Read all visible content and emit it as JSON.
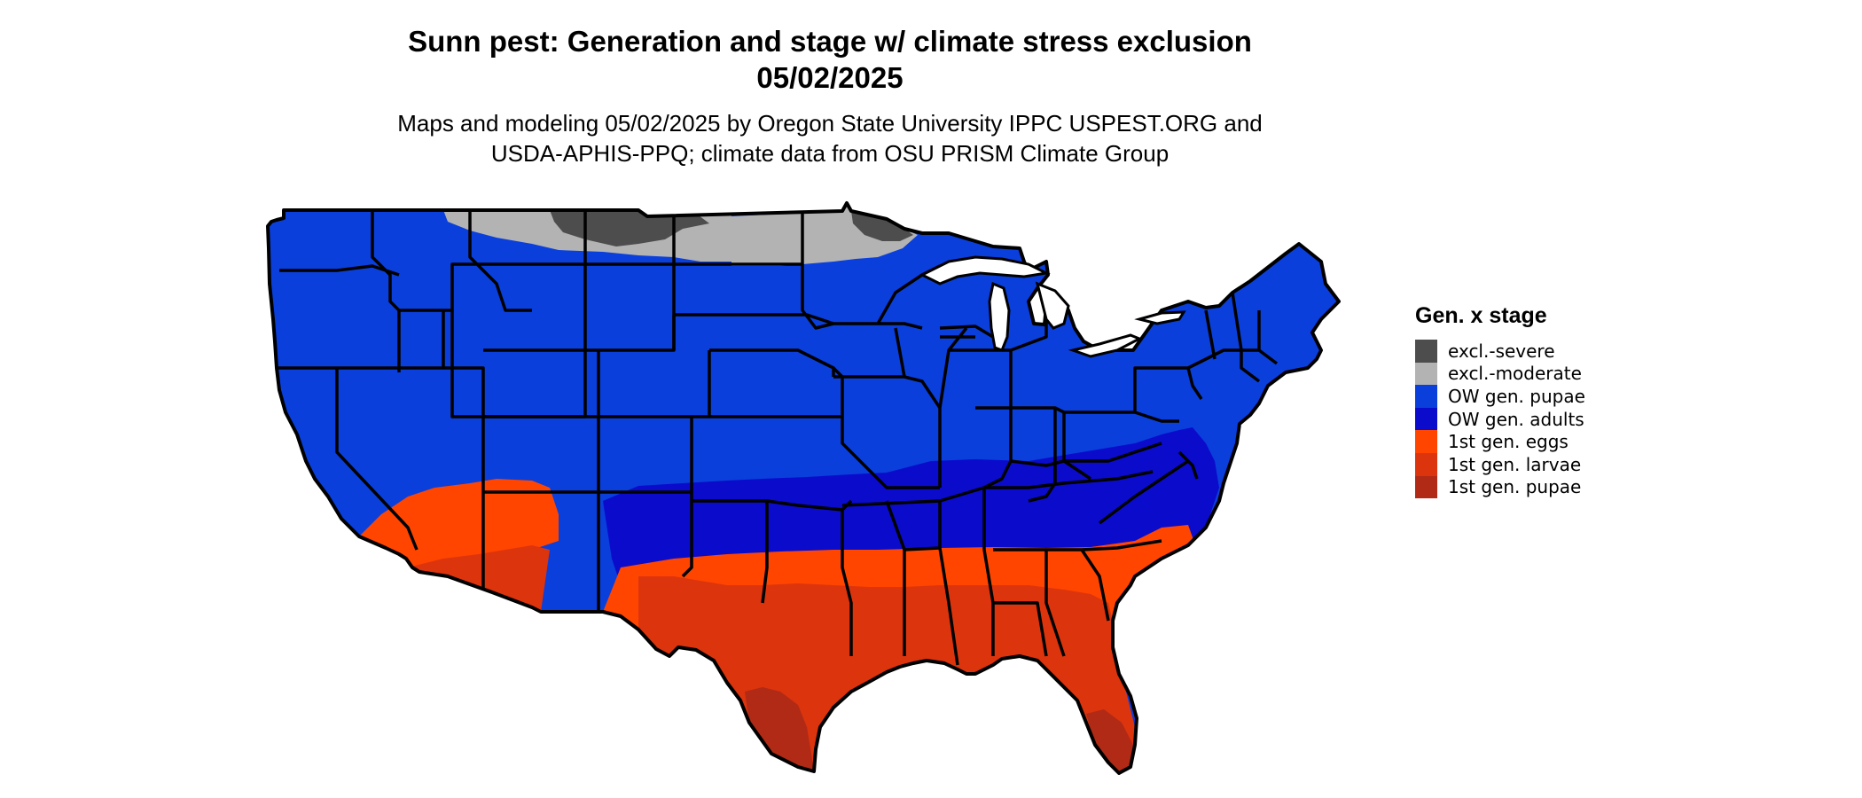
{
  "header": {
    "title_line1": "Sunn pest: Generation and stage w/ climate stress exclusion",
    "title_line2": "05/02/2025",
    "subtitle_line1": "Maps and modeling 05/02/2025 by Oregon State University IPPC USPEST.ORG and",
    "subtitle_line2": "USDA-APHIS-PPQ; climate data from OSU PRISM Climate Group"
  },
  "legend": {
    "title": "Gen. x stage",
    "items": [
      {
        "label": "excl.-severe",
        "color": "#4d4d4d"
      },
      {
        "label": "excl.-moderate",
        "color": "#b3b3b3"
      },
      {
        "label": "OW gen. pupae",
        "color": "#0a3fdb"
      },
      {
        "label": "OW gen. adults",
        "color": "#0b0bcc"
      },
      {
        "label": "1st gen. eggs",
        "color": "#ff4500"
      },
      {
        "label": "1st gen. larvae",
        "color": "#dc340d"
      },
      {
        "label": "1st gen. pupae",
        "color": "#b02a16"
      }
    ]
  },
  "map_colors": {
    "severe": "#4d4d4d",
    "moderate": "#b3b3b3",
    "ow_pupae": "#0a3fdb",
    "ow_adults": "#0b0bcc",
    "eggs": "#ff4500",
    "larvae": "#dc340d",
    "pupae": "#b02a16",
    "border": "#000000"
  }
}
